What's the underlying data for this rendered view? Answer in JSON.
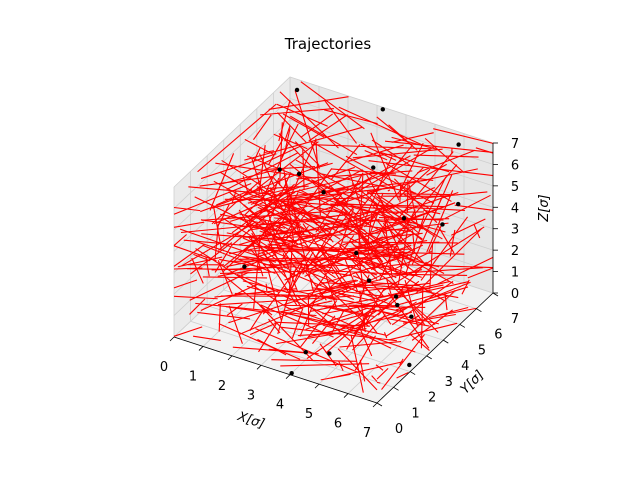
{
  "chart_data": {
    "type": "line",
    "title": "Trajectories",
    "xlabel": "X[σ]",
    "ylabel": "Y[σ]",
    "zlabel": "Z[σ]",
    "xlim": [
      0,
      7
    ],
    "ylim": [
      0,
      7
    ],
    "zlim": [
      0,
      7
    ],
    "x_ticks": [
      "0",
      "1",
      "2",
      "3",
      "4",
      "5",
      "6",
      "7"
    ],
    "y_ticks": [
      "0",
      "1",
      "2",
      "3",
      "4",
      "5",
      "6",
      "7"
    ],
    "z_ticks": [
      "0",
      "1",
      "2",
      "3",
      "4",
      "5",
      "6",
      "7"
    ],
    "grid": true,
    "trajectory_color": "#ff0000",
    "marker_color": "#000000",
    "points": [
      [
        0.3,
        6.9,
        6.6
      ],
      [
        0.5,
        5.5,
        4.0
      ],
      [
        0.6,
        3.2,
        1.2
      ],
      [
        1.0,
        5.8,
        3.8
      ],
      [
        3.2,
        7.0,
        6.9
      ],
      [
        4.3,
        4.5,
        6.5
      ],
      [
        5.3,
        4.6,
        4.5
      ],
      [
        6.1,
        6.5,
        6.9
      ],
      [
        6.6,
        5.6,
        5.0
      ],
      [
        6.0,
        2.9,
        2.4
      ],
      [
        6.3,
        3.3,
        1.3
      ],
      [
        6.8,
        2.3,
        0.0
      ],
      [
        4.2,
        0.6,
        0.7
      ],
      [
        4.9,
        0.8,
        0.8
      ],
      [
        4.0,
        0.1,
        0.0
      ],
      [
        6.9,
        1.4,
        3.5
      ],
      [
        6.5,
        0.4,
        5.2
      ],
      [
        5.6,
        1.2,
        5.5
      ],
      [
        2.3,
        5.0,
        4.1
      ],
      [
        6.4,
        5.0,
        4.4
      ]
    ]
  }
}
